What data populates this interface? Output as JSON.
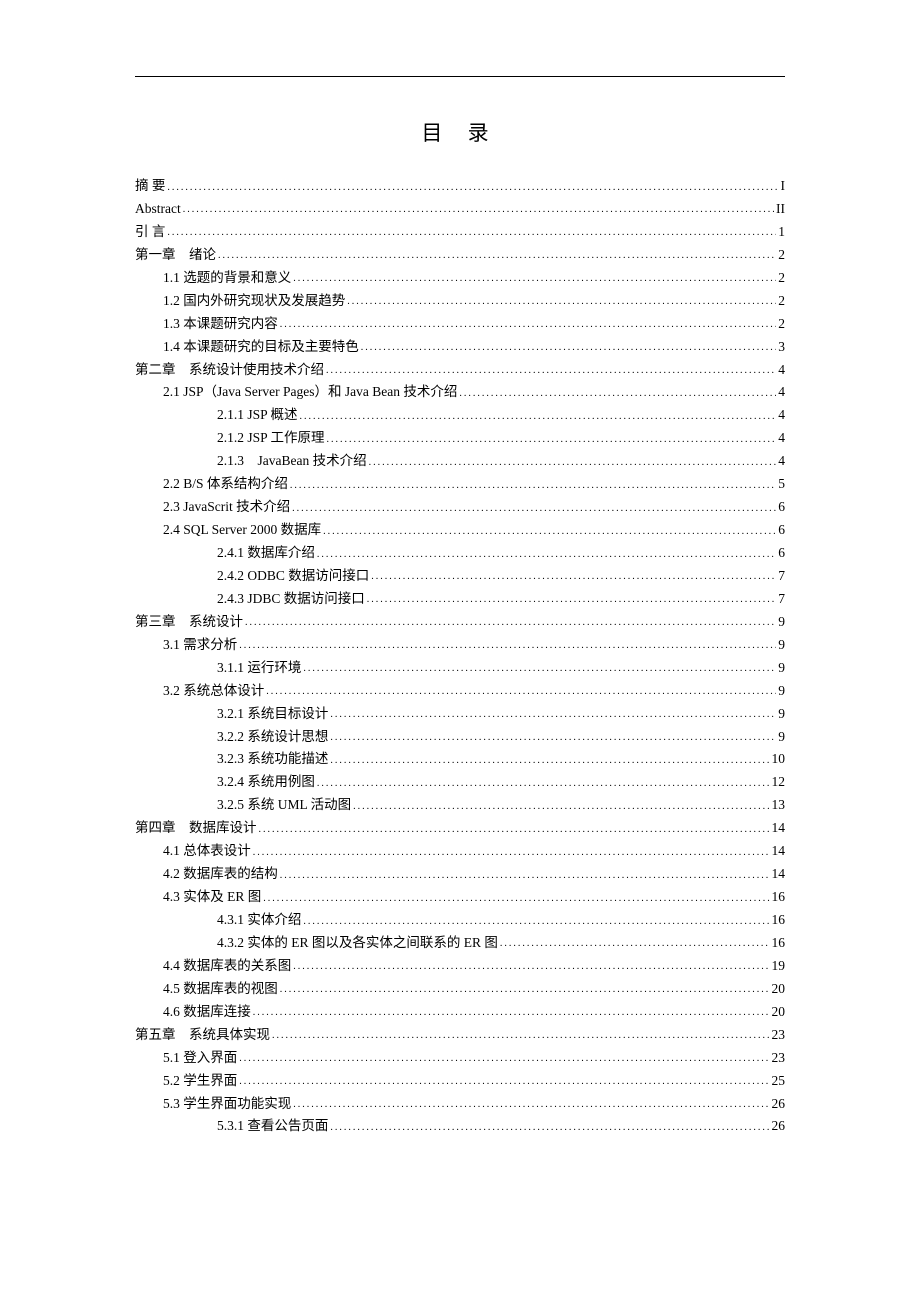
{
  "title": "目 录",
  "entries": [
    {
      "label": "摘 要",
      "page": "I",
      "indent": 0
    },
    {
      "label": "Abstract",
      "page": "II",
      "indent": 0
    },
    {
      "label": "引 言",
      "page": "1",
      "indent": 0
    },
    {
      "label": "第一章　绪论",
      "page": "2",
      "indent": 0
    },
    {
      "label": "1.1 选题的背景和意义",
      "page": "2",
      "indent": 1
    },
    {
      "label": "1.2 国内外研究现状及发展趋势",
      "page": "2",
      "indent": 1
    },
    {
      "label": "1.3 本课题研究内容",
      "page": "2",
      "indent": 1
    },
    {
      "label": "1.4 本课题研究的目标及主要特色",
      "page": "3",
      "indent": 1
    },
    {
      "label": "第二章　系统设计使用技术介绍",
      "page": "4",
      "indent": 0
    },
    {
      "label": "2.1 JSP（Java Server Pages）和 Java Bean 技术介绍",
      "page": "4",
      "indent": 1
    },
    {
      "label": "2.1.1 JSP 概述",
      "page": "4",
      "indent": 2
    },
    {
      "label": "2.1.2 JSP 工作原理",
      "page": "4",
      "indent": 2
    },
    {
      "label": "2.1.3　JavaBean 技术介绍",
      "page": "4",
      "indent": 2
    },
    {
      "label": "2.2 B/S 体系结构介绍",
      "page": "5",
      "indent": 1
    },
    {
      "label": "2.3 JavaScrit 技术介绍",
      "page": "6",
      "indent": 1
    },
    {
      "label": "2.4 SQL Server 2000 数据库",
      "page": "6",
      "indent": 1
    },
    {
      "label": "2.4.1 数据库介绍",
      "page": "6",
      "indent": 2
    },
    {
      "label": "2.4.2 ODBC 数据访问接口",
      "page": "7",
      "indent": 2
    },
    {
      "label": "2.4.3 JDBC 数据访问接口",
      "page": "7",
      "indent": 2
    },
    {
      "label": "第三章　系统设计",
      "page": "9",
      "indent": 0
    },
    {
      "label": "3.1 需求分析",
      "page": "9",
      "indent": 1
    },
    {
      "label": "3.1.1 运行环境",
      "page": "9",
      "indent": 2
    },
    {
      "label": "3.2 系统总体设计",
      "page": "9",
      "indent": 1
    },
    {
      "label": "3.2.1 系统目标设计",
      "page": "9",
      "indent": 2
    },
    {
      "label": "3.2.2 系统设计思想",
      "page": "9",
      "indent": 2
    },
    {
      "label": "3.2.3 系统功能描述",
      "page": "10",
      "indent": 2
    },
    {
      "label": "3.2.4 系统用例图",
      "page": "12",
      "indent": 2
    },
    {
      "label": "3.2.5 系统 UML 活动图",
      "page": "13",
      "indent": 2
    },
    {
      "label": "第四章　数据库设计",
      "page": "14",
      "indent": 0
    },
    {
      "label": "4.1 总体表设计",
      "page": "14",
      "indent": 1
    },
    {
      "label": "4.2 数据库表的结构",
      "page": "14",
      "indent": 1
    },
    {
      "label": "4.3 实体及 ER 图",
      "page": "16",
      "indent": 1
    },
    {
      "label": "4.3.1 实体介绍",
      "page": "16",
      "indent": 2
    },
    {
      "label": "4.3.2 实体的 ER 图以及各实体之间联系的 ER 图",
      "page": "16",
      "indent": 2
    },
    {
      "label": "4.4 数据库表的关系图",
      "page": "19",
      "indent": 1
    },
    {
      "label": "4.5 数据库表的视图",
      "page": "20",
      "indent": 1
    },
    {
      "label": "4.6 数据库连接",
      "page": "20",
      "indent": 1
    },
    {
      "label": "第五章　系统具体实现",
      "page": "23",
      "indent": 0
    },
    {
      "label": "5.1 登入界面",
      "page": "23",
      "indent": 1
    },
    {
      "label": "5.2 学生界面",
      "page": "25",
      "indent": 1
    },
    {
      "label": "5.3 学生界面功能实现",
      "page": "26",
      "indent": 1
    },
    {
      "label": "5.3.1 查看公告页面",
      "page": "26",
      "indent": 2
    }
  ]
}
